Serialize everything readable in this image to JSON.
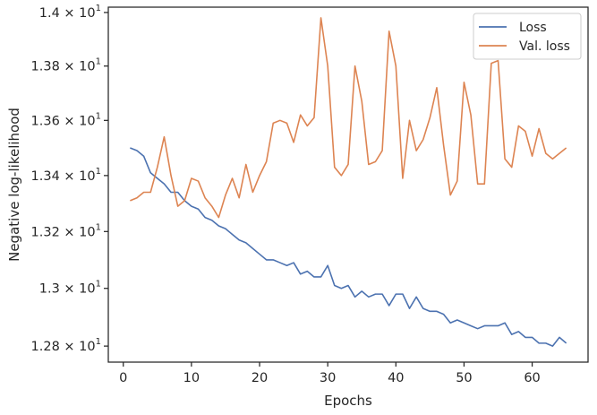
{
  "chart_data": {
    "type": "line",
    "title": "",
    "xlabel": "Epochs",
    "ylabel": "Negative log-likelihood",
    "xlim": [
      -2.2,
      68.2
    ],
    "ylim": [
      12.745,
      14.02
    ],
    "x_ticks": [
      {
        "value": 0,
        "label": "0"
      },
      {
        "value": 10,
        "label": "10"
      },
      {
        "value": 20,
        "label": "20"
      },
      {
        "value": 30,
        "label": "30"
      },
      {
        "value": 40,
        "label": "40"
      },
      {
        "value": 50,
        "label": "50"
      },
      {
        "value": 60,
        "label": "60"
      }
    ],
    "y_ticks": [
      {
        "value": 12.8,
        "mantissa": "1.28",
        "base": "10",
        "exp": "1"
      },
      {
        "value": 13.0,
        "mantissa": "1.3",
        "base": "10",
        "exp": "1"
      },
      {
        "value": 13.2,
        "mantissa": "1.32",
        "base": "10",
        "exp": "1"
      },
      {
        "value": 13.4,
        "mantissa": "1.34",
        "base": "10",
        "exp": "1"
      },
      {
        "value": 13.6,
        "mantissa": "1.36",
        "base": "10",
        "exp": "1"
      },
      {
        "value": 13.8,
        "mantissa": "1.38",
        "base": "10",
        "exp": "1"
      },
      {
        "value": 14.0,
        "mantissa": "1.4",
        "base": "10",
        "exp": "1"
      }
    ],
    "y_scale": "log",
    "grid": false,
    "legend_position": "top-right",
    "x": [
      1,
      2,
      3,
      4,
      5,
      6,
      7,
      8,
      9,
      10,
      11,
      12,
      13,
      14,
      15,
      16,
      17,
      18,
      19,
      20,
      21,
      22,
      23,
      24,
      25,
      26,
      27,
      28,
      29,
      30,
      31,
      32,
      33,
      34,
      35,
      36,
      37,
      38,
      39,
      40,
      41,
      42,
      43,
      44,
      45,
      46,
      47,
      48,
      49,
      50,
      51,
      52,
      53,
      54,
      55,
      56,
      57,
      58,
      59,
      60,
      61,
      62,
      63,
      64,
      65
    ],
    "series": [
      {
        "name": "Loss",
        "color": "#4c72b0",
        "values": [
          13.5,
          13.49,
          13.47,
          13.41,
          13.39,
          13.37,
          13.34,
          13.34,
          13.31,
          13.29,
          13.28,
          13.25,
          13.24,
          13.22,
          13.21,
          13.19,
          13.17,
          13.16,
          13.14,
          13.12,
          13.1,
          13.1,
          13.09,
          13.08,
          13.09,
          13.05,
          13.06,
          13.04,
          13.04,
          13.08,
          13.01,
          13.0,
          13.01,
          12.97,
          12.99,
          12.97,
          12.98,
          12.98,
          12.94,
          12.98,
          12.98,
          12.93,
          12.97,
          12.93,
          12.92,
          12.92,
          12.91,
          12.88,
          12.89,
          12.88,
          12.87,
          12.86,
          12.87,
          12.87,
          12.87,
          12.88,
          12.84,
          12.85,
          12.83,
          12.83,
          12.81,
          12.81,
          12.8,
          12.83,
          12.81
        ]
      },
      {
        "name": "Val. loss",
        "color": "#dd8452",
        "values": [
          13.31,
          13.32,
          13.34,
          13.34,
          13.43,
          13.54,
          13.4,
          13.29,
          13.31,
          13.39,
          13.38,
          13.32,
          13.29,
          13.25,
          13.33,
          13.39,
          13.32,
          13.44,
          13.34,
          13.4,
          13.45,
          13.59,
          13.6,
          13.59,
          13.52,
          13.62,
          13.58,
          13.61,
          13.98,
          13.8,
          13.43,
          13.4,
          13.44,
          13.8,
          13.67,
          13.44,
          13.45,
          13.49,
          13.93,
          13.8,
          13.39,
          13.6,
          13.49,
          13.53,
          13.61,
          13.72,
          13.51,
          13.33,
          13.38,
          13.74,
          13.62,
          13.37,
          13.37,
          13.81,
          13.82,
          13.46,
          13.43,
          13.58,
          13.56,
          13.47,
          13.57,
          13.48,
          13.46,
          13.48,
          13.5
        ]
      }
    ]
  }
}
